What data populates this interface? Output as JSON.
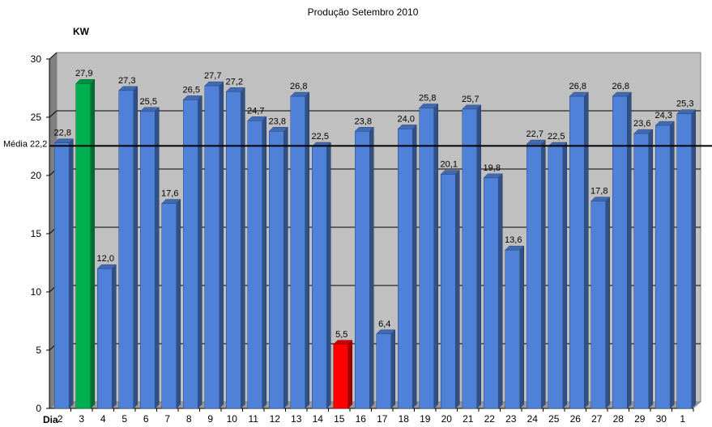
{
  "chart_data": {
    "type": "bar",
    "title": "Produção Setembro 2010",
    "ylabel": "KW",
    "xlabel": "Dia",
    "ylim": [
      0,
      30
    ],
    "yticks": [
      0,
      5,
      10,
      15,
      20,
      25,
      30
    ],
    "grid": true,
    "categories": [
      "2",
      "3",
      "4",
      "5",
      "6",
      "7",
      "8",
      "9",
      "10",
      "11",
      "12",
      "13",
      "14",
      "15",
      "16",
      "17",
      "18",
      "19",
      "20",
      "21",
      "22",
      "23",
      "24",
      "25",
      "26",
      "27",
      "28",
      "29",
      "30",
      "1"
    ],
    "values": [
      22.8,
      27.9,
      12.0,
      27.3,
      25.5,
      17.6,
      26.5,
      27.7,
      27.2,
      24.7,
      23.8,
      26.8,
      22.5,
      5.5,
      23.8,
      6.4,
      24.0,
      25.8,
      20.1,
      25.7,
      19.8,
      13.6,
      22.7,
      22.5,
      26.8,
      17.8,
      26.8,
      23.6,
      24.3,
      25.3
    ],
    "value_labels": [
      "22,8",
      "27,9",
      "12,0",
      "27,3",
      "25,5",
      "17,6",
      "26,5",
      "27,7",
      "27,2",
      "24,7",
      "23,8",
      "26,8",
      "22,5",
      "5,5",
      "23,8",
      "6,4",
      "24,0",
      "25,8",
      "20,1",
      "25,7",
      "19,8",
      "13,6",
      "22,7",
      "22,5",
      "26,8",
      "17,8",
      "26,8",
      "23,6",
      "24,3",
      "25,3"
    ],
    "bar_color": "#4f81d8",
    "max_color": "#00b050",
    "min_color": "#ff0000",
    "highlight_max_index": 1,
    "highlight_min_index": 13,
    "average": {
      "value": 22.2,
      "label": "Média 22,2"
    },
    "plot_background": "#c0c0c0"
  }
}
